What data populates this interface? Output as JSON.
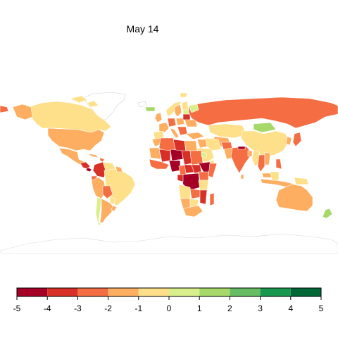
{
  "title": "May 14",
  "legend": {
    "ticks": [
      "-5",
      "-4",
      "-3",
      "-2",
      "-1",
      "0",
      "1",
      "2",
      "3",
      "4",
      "5"
    ],
    "range": [
      -5,
      5
    ],
    "colors": [
      "#a50026",
      "#d73027",
      "#f46d43",
      "#fdae61",
      "#fee08b",
      "#d9ef8b",
      "#a6d96a",
      "#66bd63",
      "#1a9850",
      "#006837"
    ]
  },
  "map_colors": {
    "ocean": "#ffffff",
    "border": "#ffffff",
    "no_data": "#ffffff",
    "no_data_outline": "#d9d9d9"
  }
}
